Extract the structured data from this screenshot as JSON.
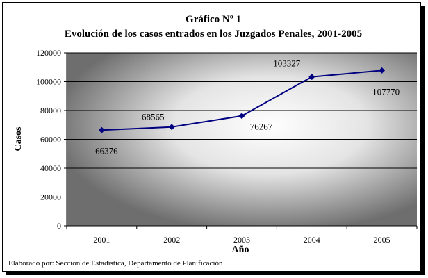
{
  "chart_data": {
    "type": "line",
    "title": "Gráfico Nº 1",
    "subtitle": "Evolución de los casos entrados en los Juzgados Penales, 2001-2005",
    "xlabel": "Año",
    "ylabel": "Casos",
    "categories": [
      "2001",
      "2002",
      "2003",
      "2004",
      "2005"
    ],
    "series": [
      {
        "values": [
          66376,
          68565,
          76267,
          103327,
          107770
        ]
      }
    ],
    "data_labels": [
      "66376",
      "68565",
      "76267",
      "103327",
      "107770"
    ],
    "ylim": [
      0,
      120000
    ],
    "yticks": [
      "0",
      "20000",
      "40000",
      "60000",
      "80000",
      "100000",
      "120000"
    ],
    "grid": "horizontal",
    "line_color": "#000080"
  },
  "source_note": "Elaborado por: Sección de Estadística, Departamento de Planificación"
}
